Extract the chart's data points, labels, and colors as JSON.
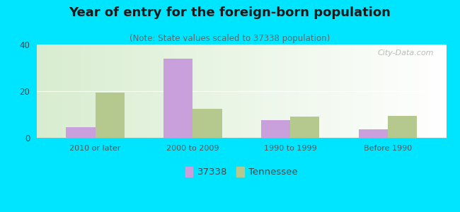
{
  "title": "Year of entry for the foreign-born population",
  "subtitle": "(Note: State values scaled to 37338 population)",
  "categories": [
    "2010 or later",
    "2000 to 2009",
    "1990 to 1999",
    "Before 1990"
  ],
  "series_37338": [
    4.5,
    34.0,
    7.5,
    3.5
  ],
  "series_tennessee": [
    19.5,
    12.5,
    9.0,
    9.5
  ],
  "color_37338": "#c9a0dc",
  "color_tennessee": "#b5c98e",
  "ylim": [
    0,
    40
  ],
  "yticks": [
    0,
    20,
    40
  ],
  "background_color": "#00e5ff",
  "legend_label_37338": "37338",
  "legend_label_tennessee": "Tennessee",
  "bar_width": 0.3,
  "title_fontsize": 13,
  "subtitle_fontsize": 8.5,
  "watermark": "City-Data.com"
}
